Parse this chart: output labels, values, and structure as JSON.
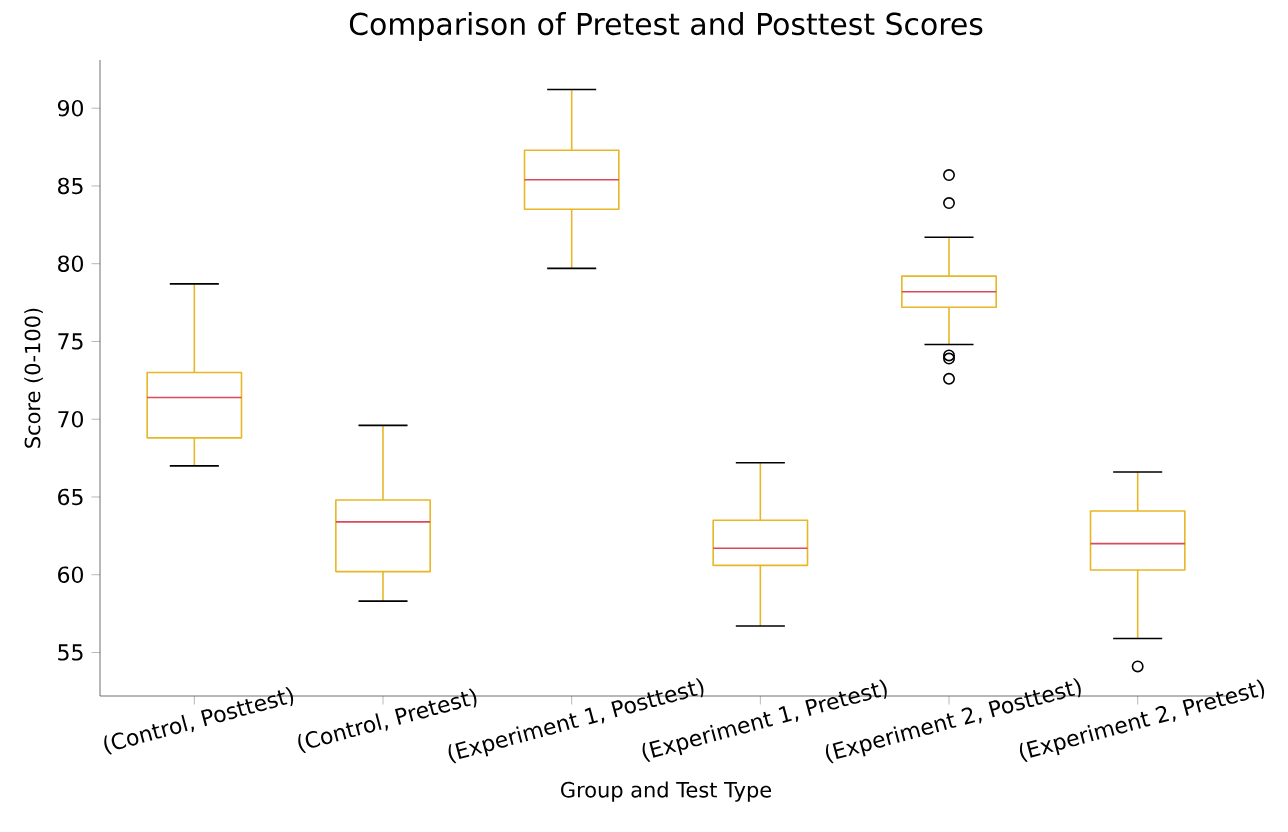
{
  "chart_data": {
    "type": "box",
    "title": "Comparison of Pretest and Posttest Scores",
    "xlabel": "Group and Test Type",
    "ylabel": "Score (0-100)",
    "categories": [
      "(Control, Posttest)",
      "(Control, Pretest)",
      "(Experiment 1, Posttest)",
      "(Experiment 1, Pretest)",
      "(Experiment 2, Posttest)",
      "(Experiment 2, Pretest)"
    ],
    "color": "#e8b626",
    "marker": "circle",
    "boxes": [
      {
        "low": 67.0,
        "q1": 68.8,
        "median": 71.4,
        "q3": 73.0,
        "high": 78.7
      },
      {
        "low": 58.3,
        "q1": 60.2,
        "median": 63.4,
        "q3": 64.8,
        "high": 69.6
      },
      {
        "low": 79.7,
        "q1": 83.5,
        "median": 85.4,
        "q3": 87.3,
        "high": 91.2
      },
      {
        "low": 56.7,
        "q1": 60.6,
        "median": 61.7,
        "q3": 63.5,
        "high": 67.2
      },
      {
        "low": 74.8,
        "q1": 77.2,
        "median": 78.2,
        "q3": 79.2,
        "high": 81.7,
        "outliers": [
          85.7,
          83.9,
          74.1,
          73.9,
          72.6
        ]
      },
      {
        "low": 55.9,
        "q1": 60.3,
        "median": 62.0,
        "q3": 64.1,
        "high": 66.6,
        "outliers": [
          54.1
        ]
      }
    ],
    "ylim": [
      52.2,
      93.1
    ],
    "yticks": [
      55,
      60,
      65,
      70,
      75,
      80,
      85,
      90
    ]
  }
}
